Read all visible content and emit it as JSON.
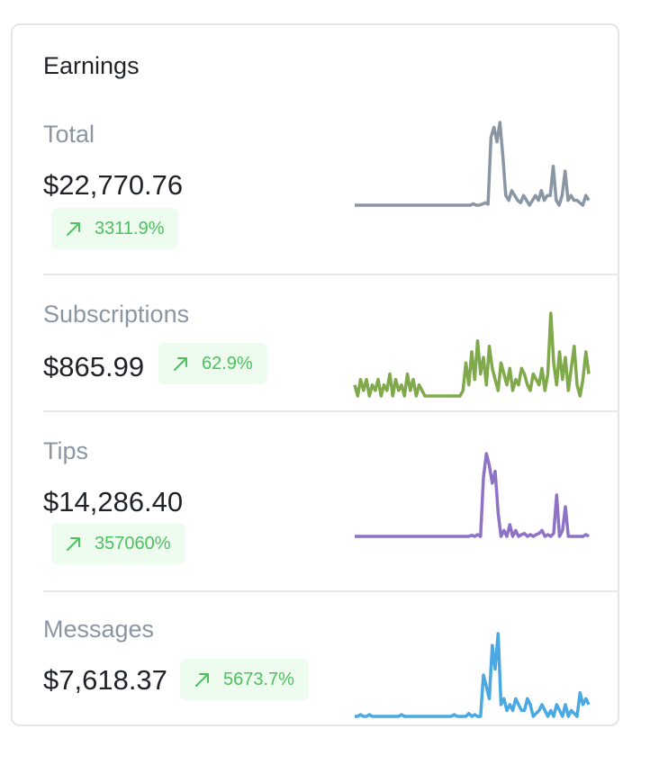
{
  "card": {
    "title": "Earnings"
  },
  "rows": [
    {
      "label": "Total",
      "amount": "$22,770.76",
      "change": "3311.9%",
      "trend_icon": "trend-up-arrow-icon",
      "line_color": "#8a96a3",
      "series": [
        0,
        0,
        0,
        0,
        0,
        0,
        0,
        0,
        0,
        0,
        0,
        0,
        0,
        0,
        0,
        0,
        0,
        0,
        0,
        0,
        0,
        0,
        0,
        0,
        0,
        0,
        0,
        0,
        0,
        0,
        0,
        0,
        0,
        0,
        0,
        0,
        0,
        0,
        0,
        0,
        0.3,
        0,
        0,
        0.2,
        0.5,
        0.2,
        14,
        16,
        13,
        17,
        10,
        2,
        1,
        3,
        2,
        1,
        0.5,
        2,
        1,
        0,
        1,
        2,
        1,
        3,
        1,
        2,
        2,
        8,
        1,
        0,
        2,
        7,
        1,
        2,
        1,
        1,
        0.5,
        0,
        2,
        1
      ]
    },
    {
      "label": "Subscriptions",
      "amount": "$865.99",
      "change": "62.9%",
      "trend_icon": "trend-up-arrow-icon",
      "line_color": "#7fa94a",
      "series": [
        2,
        0,
        3,
        1,
        3,
        0,
        2,
        1,
        3,
        0,
        2,
        1,
        4,
        0,
        3,
        1,
        2,
        0,
        4,
        1,
        3,
        0,
        2,
        1,
        0,
        0,
        0,
        0,
        0,
        0,
        0,
        0,
        0,
        0,
        0,
        0,
        0,
        1,
        6,
        2,
        8,
        3,
        10,
        4,
        7,
        2,
        9,
        5,
        3,
        1,
        6,
        4,
        2,
        5,
        1,
        3,
        2,
        5,
        4,
        2,
        1,
        4,
        3,
        2,
        5,
        1,
        4,
        15,
        6,
        2,
        8,
        3,
        7,
        1,
        5,
        9,
        2,
        0,
        3,
        8,
        4
      ]
    },
    {
      "label": "Tips",
      "amount": "$14,286.40",
      "change": "357060%",
      "trend_icon": "trend-up-arrow-icon",
      "line_color": "#8e72c6",
      "series": [
        0,
        0,
        0,
        0,
        0,
        0,
        0,
        0,
        0,
        0,
        0,
        0,
        0,
        0,
        0,
        0,
        0,
        0,
        0,
        0,
        0,
        0,
        0,
        0,
        0,
        0,
        0,
        0,
        0,
        0,
        0,
        0,
        0,
        0,
        0,
        0,
        0,
        0,
        0,
        0,
        0.2,
        0,
        0.3,
        0,
        10,
        14,
        12,
        9,
        11,
        4,
        0,
        1,
        0,
        2,
        0,
        1,
        0,
        0.3,
        0.5,
        0,
        0.3,
        0,
        0.3,
        0.5,
        1,
        0,
        0.3,
        0,
        0.5,
        7,
        0,
        1,
        5,
        0,
        0,
        0,
        0,
        0,
        0,
        0.3,
        0
      ]
    },
    {
      "label": "Messages",
      "amount": "$7,618.37",
      "change": "5673.7%",
      "trend_icon": "trend-up-arrow-icon",
      "line_color": "#4aa8e2",
      "series": [
        0,
        0,
        0.3,
        0,
        0,
        0.3,
        0,
        0,
        0,
        0,
        0,
        0,
        0,
        0,
        0,
        0,
        0.3,
        0,
        0,
        0,
        0,
        0,
        0,
        0,
        0,
        0,
        0,
        0,
        0,
        0,
        0,
        0,
        0,
        0,
        0.3,
        0,
        0,
        0,
        0,
        0.5,
        0,
        0.3,
        0,
        0,
        7,
        5,
        3,
        12,
        8,
        14,
        2,
        3,
        1,
        2,
        1,
        3,
        2,
        1,
        1,
        3,
        2,
        0,
        0.5,
        1,
        2,
        1,
        0,
        1,
        0,
        2,
        1,
        0,
        2,
        0,
        1,
        0.5,
        0,
        4,
        2,
        3,
        2
      ]
    }
  ]
}
